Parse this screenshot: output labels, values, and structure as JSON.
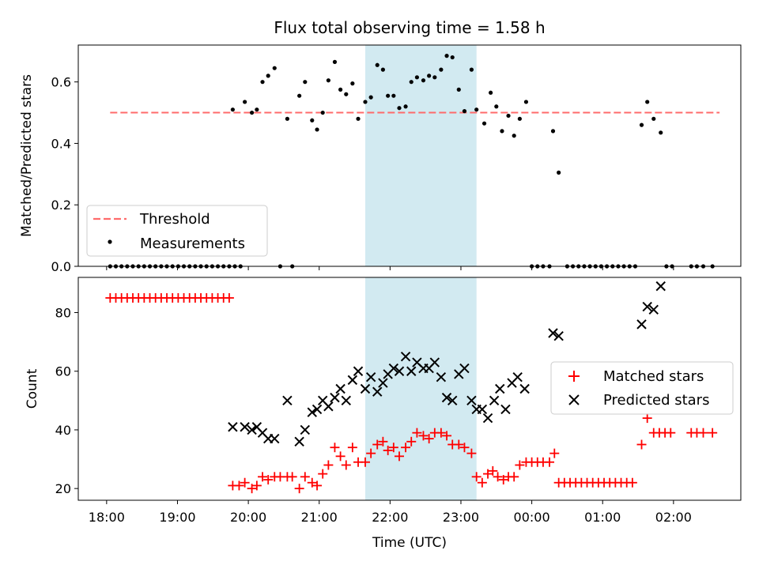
{
  "chart_data": [
    {
      "type": "scatter",
      "title": "Flux total observing time = 1.58 h",
      "ylabel": "Matched/Predicted stars",
      "xlabel": "",
      "x_unit": "hours since 18:00 UTC",
      "ylim": [
        0,
        0.72
      ],
      "yticks": [
        "0.0",
        "0.2",
        "0.4",
        "0.6"
      ],
      "ytick_values": [
        0,
        0.2,
        0.4,
        0.6
      ],
      "highlight_band": {
        "start": 3.65,
        "end": 5.22,
        "color": "#add8e6"
      },
      "threshold": {
        "name": "Threshold",
        "value": 0.5,
        "from": 0.05,
        "to": 8.65,
        "color": "#ff6b6b"
      },
      "legend": [
        "Threshold",
        "Measurements"
      ],
      "legend_position": "lower-left",
      "series": [
        {
          "name": "Measurements",
          "color": "#000000",
          "points": [
            [
              0.05,
              0
            ],
            [
              0.13,
              0
            ],
            [
              0.21,
              0
            ],
            [
              0.29,
              0
            ],
            [
              0.37,
              0
            ],
            [
              0.45,
              0
            ],
            [
              0.53,
              0
            ],
            [
              0.61,
              0
            ],
            [
              0.69,
              0
            ],
            [
              0.77,
              0
            ],
            [
              0.85,
              0
            ],
            [
              0.93,
              0
            ],
            [
              1.01,
              0
            ],
            [
              1.09,
              0
            ],
            [
              1.17,
              0
            ],
            [
              1.25,
              0
            ],
            [
              1.33,
              0
            ],
            [
              1.41,
              0
            ],
            [
              1.49,
              0
            ],
            [
              1.57,
              0
            ],
            [
              1.65,
              0
            ],
            [
              1.73,
              0
            ],
            [
              1.81,
              0
            ],
            [
              1.89,
              0
            ],
            [
              1.78,
              0.51
            ],
            [
              1.95,
              0.535
            ],
            [
              2.05,
              0.5
            ],
            [
              2.12,
              0.51
            ],
            [
              2.2,
              0.6
            ],
            [
              2.28,
              0.62
            ],
            [
              2.37,
              0.645
            ],
            [
              2.45,
              0
            ],
            [
              2.55,
              0.48
            ],
            [
              2.62,
              0
            ],
            [
              2.72,
              0.555
            ],
            [
              2.8,
              0.6
            ],
            [
              2.9,
              0.475
            ],
            [
              2.97,
              0.445
            ],
            [
              3.05,
              0.5
            ],
            [
              3.13,
              0.605
            ],
            [
              3.22,
              0.665
            ],
            [
              3.3,
              0.575
            ],
            [
              3.38,
              0.56
            ],
            [
              3.47,
              0.595
            ],
            [
              3.55,
              0.48
            ],
            [
              3.65,
              0.535
            ],
            [
              3.73,
              0.55
            ],
            [
              3.82,
              0.655
            ],
            [
              3.9,
              0.64
            ],
            [
              3.97,
              0.555
            ],
            [
              4.05,
              0.555
            ],
            [
              4.13,
              0.515
            ],
            [
              4.22,
              0.52
            ],
            [
              4.3,
              0.6
            ],
            [
              4.38,
              0.615
            ],
            [
              4.47,
              0.605
            ],
            [
              4.55,
              0.62
            ],
            [
              4.63,
              0.615
            ],
            [
              4.72,
              0.64
            ],
            [
              4.8,
              0.685
            ],
            [
              4.88,
              0.68
            ],
            [
              4.97,
              0.575
            ],
            [
              5.05,
              0.505
            ],
            [
              5.15,
              0.64
            ],
            [
              5.22,
              0.51
            ],
            [
              5.33,
              0.465
            ],
            [
              5.42,
              0.565
            ],
            [
              5.5,
              0.52
            ],
            [
              5.58,
              0.44
            ],
            [
              5.67,
              0.49
            ],
            [
              5.75,
              0.425
            ],
            [
              5.83,
              0.48
            ],
            [
              5.92,
              0.535
            ],
            [
              6.0,
              0
            ],
            [
              6.08,
              0
            ],
            [
              6.16,
              0
            ],
            [
              6.25,
              0
            ],
            [
              6.3,
              0.44
            ],
            [
              6.38,
              0.305
            ],
            [
              6.5,
              0
            ],
            [
              6.58,
              0
            ],
            [
              6.66,
              0
            ],
            [
              6.74,
              0
            ],
            [
              6.82,
              0
            ],
            [
              6.9,
              0
            ],
            [
              6.98,
              0
            ],
            [
              7.06,
              0
            ],
            [
              7.14,
              0
            ],
            [
              7.22,
              0
            ],
            [
              7.3,
              0
            ],
            [
              7.38,
              0
            ],
            [
              7.46,
              0
            ],
            [
              7.55,
              0.46
            ],
            [
              7.63,
              0.535
            ],
            [
              7.72,
              0.48
            ],
            [
              7.82,
              0.435
            ],
            [
              7.9,
              0
            ],
            [
              7.98,
              0
            ],
            [
              8.25,
              0
            ],
            [
              8.33,
              0
            ],
            [
              8.42,
              0
            ],
            [
              8.55,
              0
            ]
          ]
        }
      ]
    },
    {
      "type": "scatter",
      "title": "",
      "ylabel": "Count",
      "xlabel": "Time (UTC)",
      "x_unit": "hours since 18:00 UTC",
      "xlim": [
        -0.4,
        8.95
      ],
      "ylim": [
        16,
        92
      ],
      "xticks": [
        "18:00",
        "19:00",
        "20:00",
        "21:00",
        "22:00",
        "23:00",
        "00:00",
        "01:00",
        "02:00"
      ],
      "xtick_values": [
        0,
        1,
        2,
        3,
        4,
        5,
        6,
        7,
        8
      ],
      "yticks": [
        "20",
        "40",
        "60",
        "80"
      ],
      "ytick_values": [
        20,
        40,
        60,
        80
      ],
      "highlight_band": {
        "start": 3.65,
        "end": 5.22,
        "color": "#add8e6"
      },
      "legend": [
        "Matched stars",
        "Predicted stars"
      ],
      "legend_position": "center-right",
      "series": [
        {
          "name": "Matched stars",
          "marker": "+",
          "color": "#ff0000",
          "points": [
            [
              0.05,
              85
            ],
            [
              0.13,
              85
            ],
            [
              0.21,
              85
            ],
            [
              0.29,
              85
            ],
            [
              0.37,
              85
            ],
            [
              0.45,
              85
            ],
            [
              0.53,
              85
            ],
            [
              0.61,
              85
            ],
            [
              0.69,
              85
            ],
            [
              0.77,
              85
            ],
            [
              0.85,
              85
            ],
            [
              0.93,
              85
            ],
            [
              1.01,
              85
            ],
            [
              1.09,
              85
            ],
            [
              1.17,
              85
            ],
            [
              1.25,
              85
            ],
            [
              1.33,
              85
            ],
            [
              1.41,
              85
            ],
            [
              1.49,
              85
            ],
            [
              1.57,
              85
            ],
            [
              1.65,
              85
            ],
            [
              1.73,
              85
            ],
            [
              1.78,
              21
            ],
            [
              1.87,
              21
            ],
            [
              1.95,
              22
            ],
            [
              2.05,
              20
            ],
            [
              2.12,
              21
            ],
            [
              2.2,
              24
            ],
            [
              2.28,
              23
            ],
            [
              2.37,
              24
            ],
            [
              2.45,
              24
            ],
            [
              2.55,
              24
            ],
            [
              2.62,
              24
            ],
            [
              2.72,
              20
            ],
            [
              2.8,
              24
            ],
            [
              2.9,
              22
            ],
            [
              2.97,
              21
            ],
            [
              3.05,
              25
            ],
            [
              3.13,
              28
            ],
            [
              3.22,
              34
            ],
            [
              3.3,
              31
            ],
            [
              3.38,
              28
            ],
            [
              3.47,
              34
            ],
            [
              3.55,
              29
            ],
            [
              3.65,
              29
            ],
            [
              3.73,
              32
            ],
            [
              3.82,
              35
            ],
            [
              3.9,
              36
            ],
            [
              3.97,
              33
            ],
            [
              4.05,
              34
            ],
            [
              4.13,
              31
            ],
            [
              4.22,
              34
            ],
            [
              4.3,
              36
            ],
            [
              4.38,
              39
            ],
            [
              4.47,
              38
            ],
            [
              4.55,
              37
            ],
            [
              4.63,
              39
            ],
            [
              4.72,
              39
            ],
            [
              4.8,
              38
            ],
            [
              4.88,
              35
            ],
            [
              4.97,
              35
            ],
            [
              5.05,
              34
            ],
            [
              5.15,
              32
            ],
            [
              5.22,
              24
            ],
            [
              5.3,
              22
            ],
            [
              5.38,
              25
            ],
            [
              5.45,
              26
            ],
            [
              5.52,
              24
            ],
            [
              5.6,
              23
            ],
            [
              5.67,
              24
            ],
            [
              5.75,
              24
            ],
            [
              5.83,
              28
            ],
            [
              5.92,
              29
            ],
            [
              6.0,
              29
            ],
            [
              6.08,
              29
            ],
            [
              6.16,
              29
            ],
            [
              6.25,
              29
            ],
            [
              6.32,
              32
            ],
            [
              6.38,
              22
            ],
            [
              6.46,
              22
            ],
            [
              6.54,
              22
            ],
            [
              6.62,
              22
            ],
            [
              6.7,
              22
            ],
            [
              6.78,
              22
            ],
            [
              6.86,
              22
            ],
            [
              6.94,
              22
            ],
            [
              7.02,
              22
            ],
            [
              7.1,
              22
            ],
            [
              7.18,
              22
            ],
            [
              7.26,
              22
            ],
            [
              7.34,
              22
            ],
            [
              7.42,
              22
            ],
            [
              7.55,
              35
            ],
            [
              7.63,
              44
            ],
            [
              7.72,
              39
            ],
            [
              7.8,
              39
            ],
            [
              7.88,
              39
            ],
            [
              7.96,
              39
            ],
            [
              8.25,
              39
            ],
            [
              8.33,
              39
            ],
            [
              8.42,
              39
            ],
            [
              8.55,
              39
            ]
          ]
        },
        {
          "name": "Predicted stars",
          "marker": "x",
          "color": "#000000",
          "points": [
            [
              1.78,
              41
            ],
            [
              1.95,
              41
            ],
            [
              2.05,
              40
            ],
            [
              2.12,
              41
            ],
            [
              2.2,
              39
            ],
            [
              2.28,
              37
            ],
            [
              2.37,
              37
            ],
            [
              2.55,
              50
            ],
            [
              2.72,
              36
            ],
            [
              2.8,
              40
            ],
            [
              2.9,
              46
            ],
            [
              2.97,
              47
            ],
            [
              3.05,
              50
            ],
            [
              3.13,
              48
            ],
            [
              3.22,
              51
            ],
            [
              3.3,
              54
            ],
            [
              3.38,
              50
            ],
            [
              3.47,
              57
            ],
            [
              3.55,
              60
            ],
            [
              3.65,
              54
            ],
            [
              3.73,
              58
            ],
            [
              3.82,
              53
            ],
            [
              3.9,
              56
            ],
            [
              3.97,
              59
            ],
            [
              4.05,
              61
            ],
            [
              4.13,
              60
            ],
            [
              4.22,
              65
            ],
            [
              4.3,
              60
            ],
            [
              4.38,
              63
            ],
            [
              4.47,
              61
            ],
            [
              4.55,
              61
            ],
            [
              4.63,
              63
            ],
            [
              4.72,
              58
            ],
            [
              4.8,
              51
            ],
            [
              4.88,
              50
            ],
            [
              4.97,
              59
            ],
            [
              5.05,
              61
            ],
            [
              5.15,
              50
            ],
            [
              5.22,
              47
            ],
            [
              5.3,
              47
            ],
            [
              5.38,
              44
            ],
            [
              5.47,
              50
            ],
            [
              5.55,
              54
            ],
            [
              5.63,
              47
            ],
            [
              5.72,
              56
            ],
            [
              5.8,
              58
            ],
            [
              5.9,
              54
            ],
            [
              6.3,
              73
            ],
            [
              6.38,
              72
            ],
            [
              7.55,
              76
            ],
            [
              7.63,
              82
            ],
            [
              7.72,
              81
            ],
            [
              7.82,
              89
            ]
          ]
        }
      ]
    }
  ]
}
